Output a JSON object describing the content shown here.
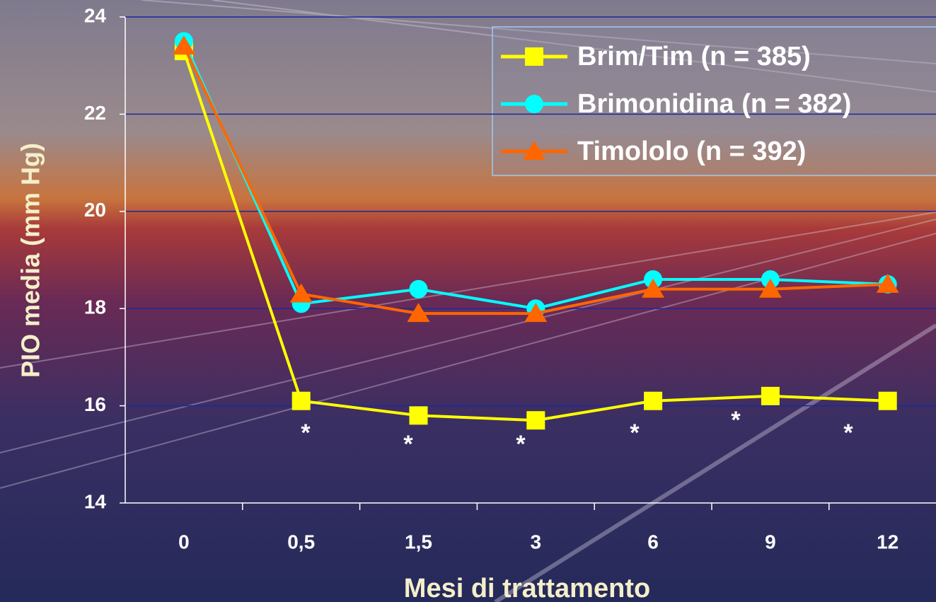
{
  "chart_data": {
    "type": "line",
    "x_label": "Mesi di trattamento",
    "y_label": "PIO media (mm Hg)",
    "categories": [
      "0",
      "0,5",
      "1,5",
      "3",
      "6",
      "9",
      "12"
    ],
    "series": [
      {
        "name": "Brim/Tim (n = 385)",
        "color": "#ffff00",
        "marker": "square",
        "values": [
          23.3,
          16.1,
          15.8,
          15.7,
          16.1,
          16.2,
          16.1
        ]
      },
      {
        "name": "Brimonidina (n = 382)",
        "color": "#00ffff",
        "marker": "circle",
        "values": [
          23.5,
          18.1,
          18.4,
          18.0,
          18.6,
          18.6,
          18.5
        ]
      },
      {
        "name": "Timololo (n = 392)",
        "color": "#ff6600",
        "marker": "triangle",
        "values": [
          23.4,
          18.3,
          17.9,
          17.9,
          18.4,
          18.4,
          18.5
        ]
      }
    ],
    "ylim": [
      14,
      24
    ],
    "yticks": [
      14,
      16,
      18,
      20,
      22,
      24
    ],
    "grid": true,
    "legend": "top-right",
    "annotations": [
      "*",
      "*",
      "*",
      "*",
      "*",
      "*"
    ]
  }
}
